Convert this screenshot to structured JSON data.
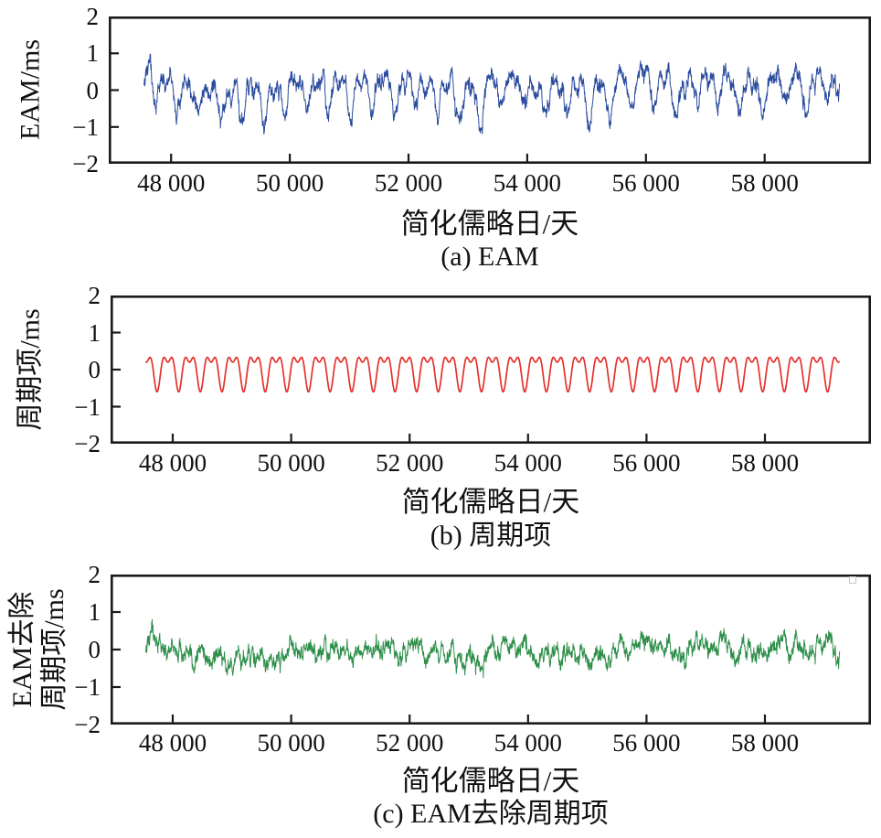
{
  "chart_data": [
    {
      "id": "a",
      "type": "line",
      "title": "(a) EAM",
      "xlabel": "简化儒略日/天",
      "ylabel_lines": [
        "EAM/ms"
      ],
      "xlim": [
        46950,
        59790
      ],
      "ylim": [
        -2,
        2
      ],
      "xticks": [
        48000,
        50000,
        52000,
        54000,
        56000,
        58000
      ],
      "xtick_labels": [
        "48 000",
        "50 000",
        "52 000",
        "54 000",
        "56 000",
        "58 000"
      ],
      "yticks": [
        2,
        1,
        0,
        -1,
        -2
      ],
      "ytick_labels": [
        "2",
        "1",
        "0",
        "−1",
        "−2"
      ],
      "grid": false,
      "legend": null,
      "series": {
        "name": "EAM",
        "color": "#2b4c9e",
        "line_width": 1,
        "model": "periodic_plus_noise",
        "x_start": 47540,
        "x_end": 59262,
        "x_step": 4,
        "periodic": {
          "mean": 0.02,
          "annual_amp": -0.4,
          "semiannual_amp": -0.22,
          "period": 365.25,
          "phase_trough_mjd": 47735
        },
        "noise": {
          "phi_fast": 0.93,
          "sigma_fast": 0.08,
          "phi_slow": 0.996,
          "sigma_slow": 0.009,
          "jitter": 0.09,
          "seed": 7
        },
        "value_range_ms": [
          -1.2,
          1.1
        ]
      }
    },
    {
      "id": "b",
      "type": "line",
      "title": "(b) 周期项",
      "xlabel": "简化儒略日/天",
      "ylabel_lines": [
        "周期项/ms"
      ],
      "xlim": [
        46950,
        59790
      ],
      "ylim": [
        -2,
        2
      ],
      "xticks": [
        48000,
        50000,
        52000,
        54000,
        56000,
        58000
      ],
      "xtick_labels": [
        "48 000",
        "50 000",
        "52 000",
        "54 000",
        "56 000",
        "58 000"
      ],
      "yticks": [
        2,
        1,
        0,
        -1,
        -2
      ],
      "ytick_labels": [
        "2",
        "1",
        "0",
        "−1",
        "−2"
      ],
      "grid": false,
      "legend": null,
      "series": {
        "name": "周期项",
        "color": "#e4312b",
        "line_width": 1.7,
        "model": "periodic",
        "x_start": 47540,
        "x_end": 59262,
        "x_step": 4,
        "periodic": {
          "mean": 0.02,
          "annual_amp": -0.4,
          "semiannual_amp": -0.22,
          "period": 365.25,
          "phase_trough_mjd": 47735
        },
        "value_range_ms": [
          -0.6,
          0.35
        ]
      }
    },
    {
      "id": "c",
      "type": "line",
      "title": "(c) EAM去除周期项",
      "xlabel": "简化儒略日/天",
      "ylabel_lines": [
        "EAM去除",
        "周期项/ms"
      ],
      "xlim": [
        46950,
        59790
      ],
      "ylim": [
        -2,
        2
      ],
      "xticks": [
        48000,
        50000,
        52000,
        54000,
        56000,
        58000
      ],
      "xtick_labels": [
        "48 000",
        "50 000",
        "52 000",
        "54 000",
        "56 000",
        "58 000"
      ],
      "yticks": [
        2,
        1,
        0,
        -1,
        -2
      ],
      "ytick_labels": [
        "2",
        "1",
        "0",
        "−1",
        "−2"
      ],
      "grid": false,
      "legend": null,
      "has_empty_legend_box": true,
      "series": {
        "name": "EAM去除周期项",
        "color": "#2e8f4a",
        "line_width": 1,
        "model": "noise",
        "x_start": 47540,
        "x_end": 59262,
        "x_step": 4,
        "noise": {
          "phi_fast": 0.93,
          "sigma_fast": 0.08,
          "phi_slow": 0.996,
          "sigma_slow": 0.009,
          "jitter": 0.09,
          "seed": 7
        },
        "value_range_ms": [
          -0.8,
          0.9
        ]
      }
    }
  ],
  "style": {
    "axis_color": "#1a1a1a",
    "background": "#ffffff",
    "tick_direction": "in"
  }
}
